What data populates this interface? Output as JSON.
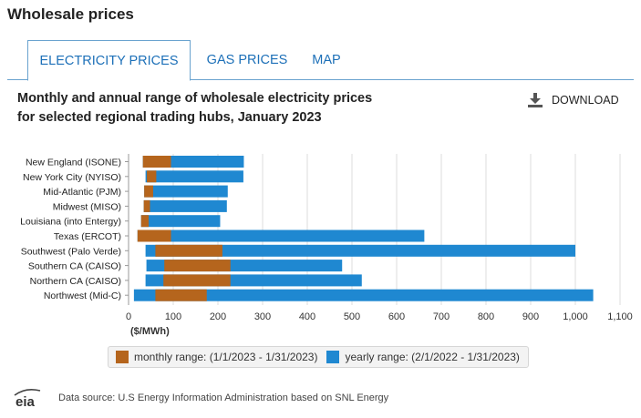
{
  "page": {
    "title": "Wholesale prices"
  },
  "tabs": [
    {
      "label": "ELECTRICITY PRICES",
      "active": true
    },
    {
      "label": "GAS PRICES",
      "active": false
    },
    {
      "label": "MAP",
      "active": false
    }
  ],
  "chart_header": {
    "title_line1": "Monthly and annual range of wholesale electricity prices",
    "title_line2": "for selected regional trading hubs, January 2023",
    "download_label": "DOWNLOAD",
    "download_icon": "download-icon"
  },
  "chart_data": {
    "type": "bar",
    "subtype": "floating-range",
    "title": "Monthly and annual range of wholesale electricity prices for selected regional trading hubs, January 2023",
    "xlabel": "($/MWh)",
    "xlim": [
      0,
      1100
    ],
    "xticks": [
      0,
      100,
      200,
      300,
      400,
      500,
      600,
      700,
      800,
      900,
      1000,
      1100
    ],
    "xtick_labels": [
      "0",
      "100",
      "200",
      "300",
      "400",
      "500",
      "600",
      "700",
      "800",
      "900",
      "1,000",
      "1,100"
    ],
    "grid": "vertical",
    "categories": [
      "New England (ISONE)",
      "New York City (NYISO)",
      "Mid-Atlantic (PJM)",
      "Midwest (MISO)",
      "Louisiana (into Entergy)",
      "Texas (ERCOT)",
      "Southwest (Palo Verde)",
      "Southern CA (CAISO)",
      "Northern CA (CAISO)",
      "Northwest (Mid-C)"
    ],
    "series": [
      {
        "name": "yearly range: (2/1/2022 - 1/31/2023)",
        "color": "#1f88d1",
        "ranges": [
          [
            32,
            258
          ],
          [
            38,
            257
          ],
          [
            35,
            222
          ],
          [
            34,
            220
          ],
          [
            28,
            205
          ],
          [
            20,
            662
          ],
          [
            38,
            1000
          ],
          [
            40,
            478
          ],
          [
            38,
            522
          ],
          [
            12,
            1040
          ]
        ]
      },
      {
        "name": "monthly range: (1/1/2023 - 1/31/2023)",
        "color": "#b5651d",
        "ranges": [
          [
            32,
            95
          ],
          [
            41,
            62
          ],
          [
            35,
            55
          ],
          [
            34,
            48
          ],
          [
            28,
            45
          ],
          [
            20,
            95
          ],
          [
            60,
            210
          ],
          [
            80,
            228
          ],
          [
            78,
            228
          ],
          [
            60,
            175
          ]
        ]
      }
    ],
    "legend": [
      "monthly range: (1/1/2023 - 1/31/2023)",
      "yearly range: (2/1/2022 - 1/31/2023)"
    ],
    "legend_position": "bottom"
  },
  "legend_items": {
    "monthly": {
      "label": "monthly range: (1/1/2023 - 1/31/2023)",
      "color": "#b5651d"
    },
    "yearly": {
      "label": "yearly range: (2/1/2022 - 1/31/2023)",
      "color": "#1f88d1"
    }
  },
  "footer": {
    "logo_text": "eia",
    "source": "Data source: U.S Energy Information Administration based on SNL Energy"
  }
}
